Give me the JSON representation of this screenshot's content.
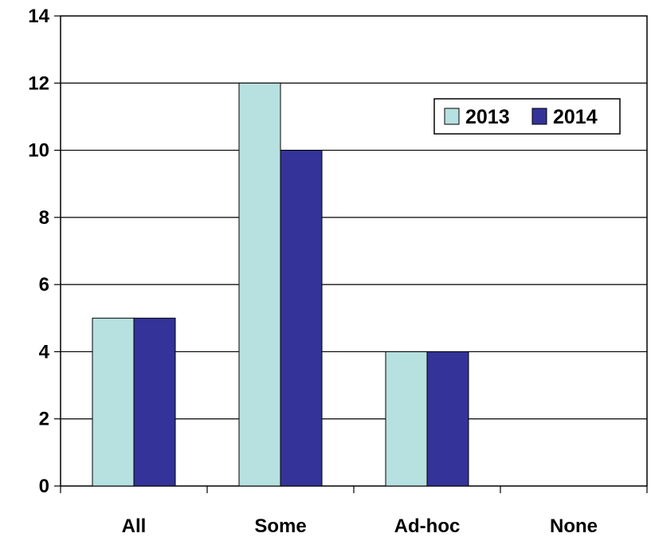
{
  "chart_data": {
    "type": "bar",
    "categories": [
      "All",
      "Some",
      "Ad-hoc",
      "None"
    ],
    "series": [
      {
        "name": "2013",
        "values": [
          5,
          12,
          4,
          0
        ],
        "color": "#b7e0e0"
      },
      {
        "name": "2014",
        "values": [
          5,
          10,
          4,
          0
        ],
        "color": "#333399"
      }
    ],
    "title": "",
    "xlabel": "",
    "ylabel": "",
    "ylim": [
      0,
      14
    ],
    "yticks": [
      "0",
      "2",
      "4",
      "6",
      "8",
      "10",
      "12",
      "14"
    ],
    "grid": true,
    "legend_position": "top-right"
  }
}
